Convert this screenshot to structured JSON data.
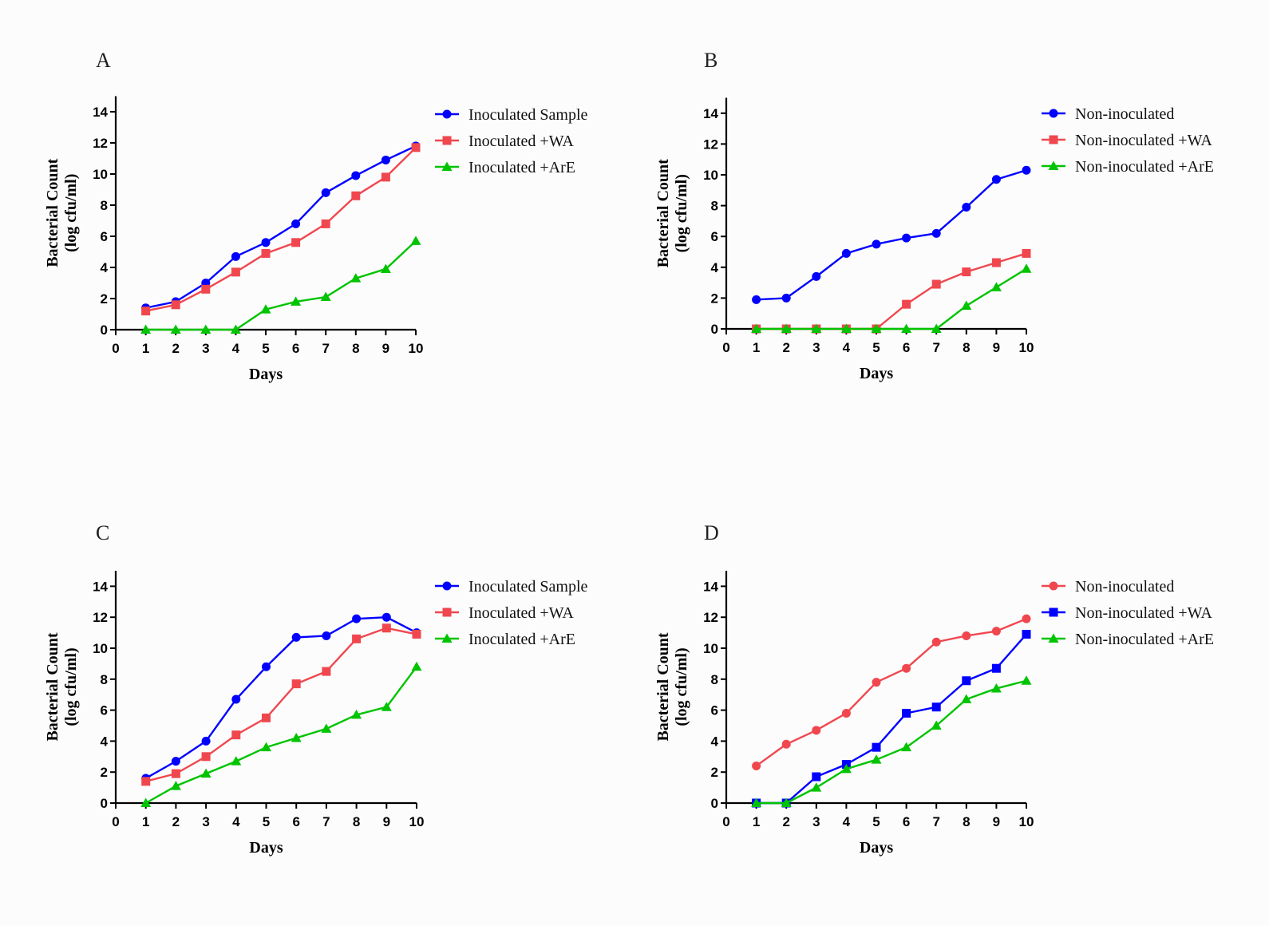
{
  "figure": {
    "background": "#fcfcfc"
  },
  "styles": {
    "blue": "#0000ff",
    "red": "#f0474f",
    "green": "#00c400",
    "axis_color": "#000000"
  },
  "chart_data": [
    {
      "panel_label": "A",
      "type": "line",
      "xlabel": "Days",
      "ylabel": [
        "Bacterial Count",
        "(log cfu/ml)"
      ],
      "x_ticks": [
        0,
        1,
        2,
        3,
        4,
        5,
        6,
        7,
        8,
        9,
        10
      ],
      "y_ticks": [
        0,
        2,
        4,
        6,
        8,
        10,
        12,
        14
      ],
      "xlim": [
        0,
        10
      ],
      "ylim": [
        0,
        15
      ],
      "grid": false,
      "legend_position": "right",
      "x": [
        1,
        2,
        3,
        4,
        5,
        6,
        7,
        8,
        9,
        10
      ],
      "series": [
        {
          "name": "Inoculated Sample",
          "color": "#0000ff",
          "marker": "circle",
          "values": [
            1.4,
            1.8,
            3.0,
            4.7,
            5.6,
            6.8,
            8.8,
            9.9,
            10.9,
            11.8
          ]
        },
        {
          "name": "Inoculated +WA",
          "color": "#f0474f",
          "marker": "square",
          "values": [
            1.2,
            1.6,
            2.6,
            3.7,
            4.9,
            5.6,
            6.8,
            8.6,
            9.8,
            11.7
          ]
        },
        {
          "name": "Inoculated +ArE",
          "color": "#00c400",
          "marker": "triangle",
          "values": [
            0,
            0,
            0,
            0,
            1.3,
            1.8,
            2.1,
            3.3,
            3.9,
            5.7
          ]
        }
      ]
    },
    {
      "panel_label": "B",
      "type": "line",
      "xlabel": "Days",
      "ylabel": [
        "Bacterial Count",
        "(log cfu/ml)"
      ],
      "x_ticks": [
        0,
        1,
        2,
        3,
        4,
        5,
        6,
        7,
        8,
        9,
        10
      ],
      "y_ticks": [
        0,
        2,
        4,
        6,
        8,
        10,
        12,
        14
      ],
      "xlim": [
        0,
        10
      ],
      "ylim": [
        0,
        15
      ],
      "grid": false,
      "legend_position": "right",
      "x": [
        1,
        2,
        3,
        4,
        5,
        6,
        7,
        8,
        9,
        10
      ],
      "series": [
        {
          "name": "Non-inoculated",
          "color": "#0000ff",
          "marker": "circle",
          "values": [
            1.9,
            2.0,
            3.4,
            4.9,
            5.5,
            5.9,
            6.2,
            7.9,
            9.7,
            10.3
          ]
        },
        {
          "name": "Non-inoculated +WA",
          "color": "#f0474f",
          "marker": "square",
          "values": [
            0,
            0,
            0,
            0,
            0,
            1.6,
            2.9,
            3.7,
            4.3,
            4.9
          ]
        },
        {
          "name": "Non-inoculated +ArE",
          "color": "#00c400",
          "marker": "triangle",
          "values": [
            0,
            0,
            0,
            0,
            0,
            0,
            0,
            1.5,
            2.7,
            3.9
          ]
        }
      ]
    },
    {
      "panel_label": "C",
      "type": "line",
      "xlabel": "Days",
      "ylabel": [
        "Bacterial Count",
        "(log cfu/ml)"
      ],
      "x_ticks": [
        0,
        1,
        2,
        3,
        4,
        5,
        6,
        7,
        8,
        9,
        10
      ],
      "y_ticks": [
        0,
        2,
        4,
        6,
        8,
        10,
        12,
        14
      ],
      "xlim": [
        0,
        10
      ],
      "ylim": [
        0,
        15
      ],
      "grid": false,
      "legend_position": "right",
      "x": [
        1,
        2,
        3,
        4,
        5,
        6,
        7,
        8,
        9,
        10
      ],
      "series": [
        {
          "name": "Inoculated Sample",
          "color": "#0000ff",
          "marker": "circle",
          "values": [
            1.6,
            2.7,
            4.0,
            6.7,
            8.8,
            10.7,
            10.8,
            11.9,
            12.0,
            11.0
          ]
        },
        {
          "name": "Inoculated +WA",
          "color": "#f0474f",
          "marker": "square",
          "values": [
            1.4,
            1.9,
            3.0,
            4.4,
            5.5,
            7.7,
            8.5,
            10.6,
            11.3,
            10.9
          ]
        },
        {
          "name": "Inoculated +ArE",
          "color": "#00c400",
          "marker": "triangle",
          "values": [
            0,
            1.1,
            1.9,
            2.7,
            3.6,
            4.2,
            4.8,
            5.7,
            6.2,
            8.8
          ]
        }
      ]
    },
    {
      "panel_label": "D",
      "type": "line",
      "xlabel": "Days",
      "ylabel": [
        "Bacterial Count",
        "(log cfu/ml)"
      ],
      "x_ticks": [
        0,
        1,
        2,
        3,
        4,
        5,
        6,
        7,
        8,
        9,
        10
      ],
      "y_ticks": [
        0,
        2,
        4,
        6,
        8,
        10,
        12,
        14
      ],
      "xlim": [
        0,
        10
      ],
      "ylim": [
        0,
        15
      ],
      "grid": false,
      "legend_position": "right",
      "x": [
        1,
        2,
        3,
        4,
        5,
        6,
        7,
        8,
        9,
        10
      ],
      "series": [
        {
          "name": "Non-inoculated",
          "color": "#f0474f",
          "marker": "circle",
          "values": [
            2.4,
            3.8,
            4.7,
            5.8,
            7.8,
            8.7,
            10.4,
            10.8,
            11.1,
            11.9
          ]
        },
        {
          "name": "Non-inoculated +WA",
          "color": "#0000ff",
          "marker": "square",
          "values": [
            0,
            0,
            1.7,
            2.5,
            3.6,
            5.8,
            6.2,
            7.9,
            8.7,
            10.9
          ]
        },
        {
          "name": "Non-inoculated +ArE",
          "color": "#00c400",
          "marker": "triangle",
          "values": [
            0,
            0,
            1.0,
            2.2,
            2.8,
            3.6,
            5.0,
            6.7,
            7.4,
            7.9
          ]
        }
      ]
    }
  ]
}
